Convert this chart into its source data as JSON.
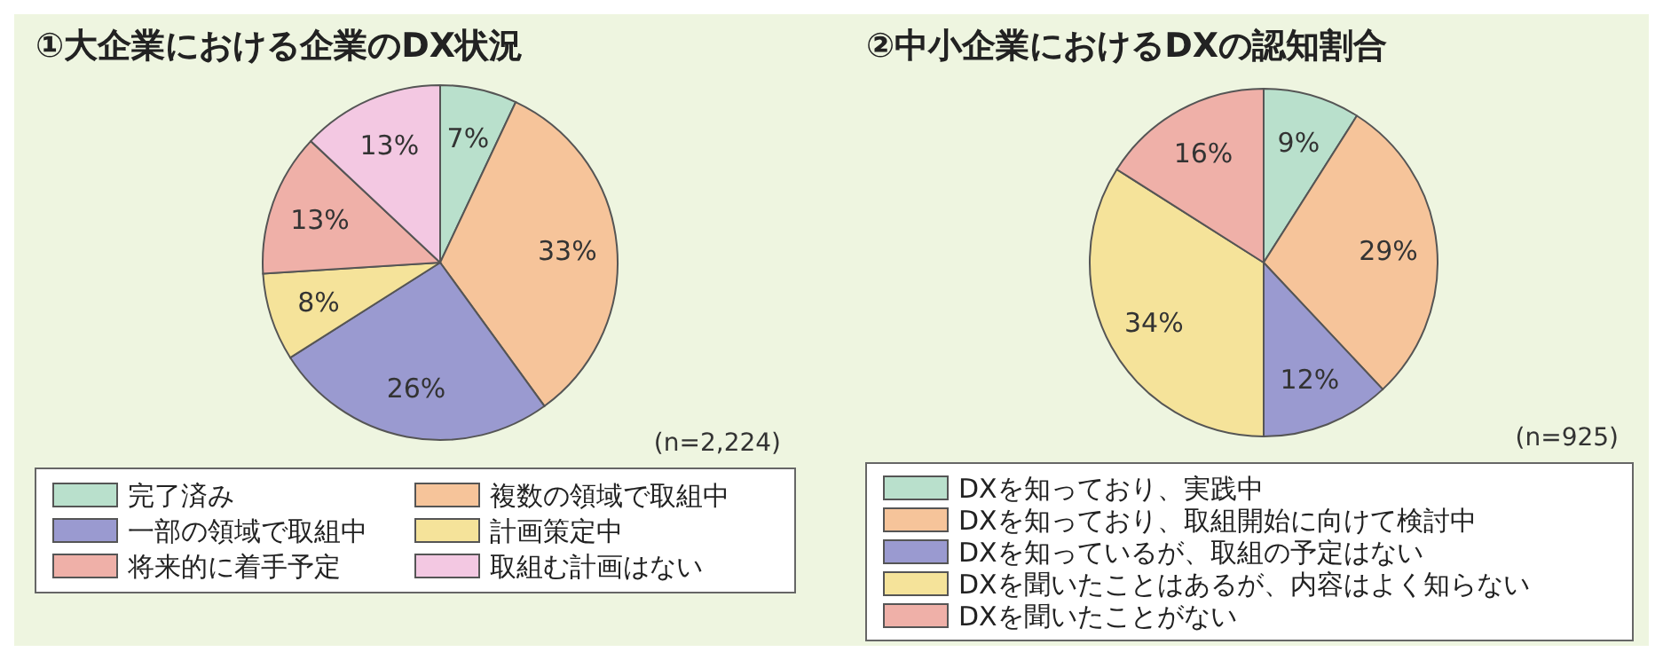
{
  "chart_data": [
    {
      "type": "pie",
      "title": "①大企業における企業のDX状況",
      "categories": [
        "完了済み",
        "複数の領域で取組中",
        "一部の領域で取組中",
        "計画策定中",
        "将来的に着手予定",
        "取組む計画はない"
      ],
      "values": [
        7,
        33,
        26,
        8,
        13,
        13
      ],
      "value_labels": [
        "7%",
        "33%",
        "26%",
        "8%",
        "13%",
        "13%"
      ],
      "colors": [
        "#b9e0cc",
        "#f6c49a",
        "#9a9ad0",
        "#f5e39a",
        "#efb0a8",
        "#f3c8e2"
      ],
      "annotations": [
        "(n=2,224)"
      ],
      "legend": "bottom"
    },
    {
      "type": "pie",
      "title": "②中小企業におけるDXの認知割合",
      "categories": [
        "DXを知っており、実践中",
        "DXを知っており、取組開始に向けて検討中",
        "DXを知っているが、取組の予定はない",
        "DXを聞いたことはあるが、内容はよく知らない",
        "DXを聞いたことがない"
      ],
      "values": [
        9,
        29,
        12,
        34,
        16
      ],
      "value_labels": [
        "9%",
        "29%",
        "12%",
        "34%",
        "16%"
      ],
      "colors": [
        "#b9e0cc",
        "#f6c49a",
        "#9a9ad0",
        "#f5e39a",
        "#efb0a8"
      ],
      "annotations": [
        "(n=925)"
      ],
      "legend": "bottom"
    }
  ]
}
